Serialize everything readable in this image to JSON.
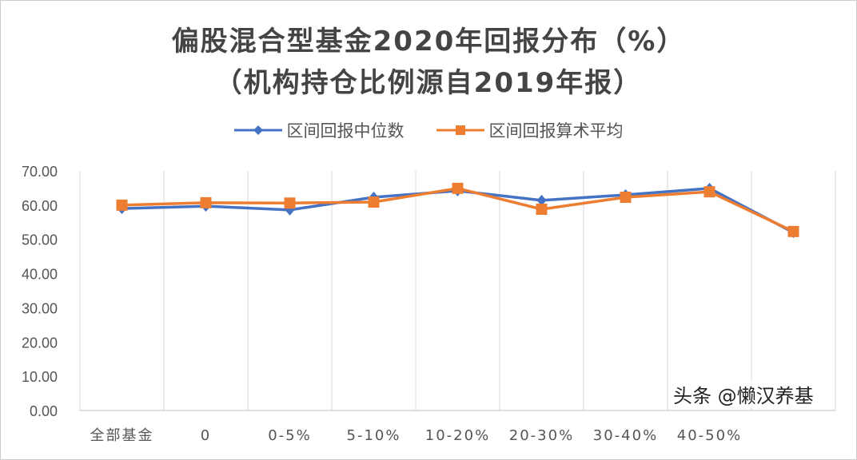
{
  "chart_data": {
    "type": "line",
    "title": "偏股混合型基金2020年回报分布（%）",
    "subtitle": "（机构持仓比例源自2019年报）",
    "categories": [
      "全部基金",
      "0",
      "0-5%",
      "5-10%",
      "10-20%",
      "20-30%",
      "30-40%",
      "40-50%",
      ""
    ],
    "series": [
      {
        "name": "区间回报中位数",
        "color": "#4472C4",
        "marker": "diamond",
        "values": [
          59.0,
          59.7,
          58.6,
          62.3,
          64.2,
          61.4,
          63.0,
          64.9,
          52.0
        ]
      },
      {
        "name": "区间回报算术平均",
        "color": "#ED7D31",
        "marker": "square",
        "values": [
          60.0,
          60.7,
          60.6,
          60.9,
          64.9,
          58.8,
          62.3,
          63.9,
          52.3
        ]
      }
    ],
    "ylim": [
      0,
      70
    ],
    "yticks": [
      "0.00",
      "10.00",
      "20.00",
      "30.00",
      "40.00",
      "50.00",
      "60.00",
      "70.00"
    ],
    "grid": "vertical",
    "legend": "top"
  },
  "watermark": "头条 @懒汉养基"
}
